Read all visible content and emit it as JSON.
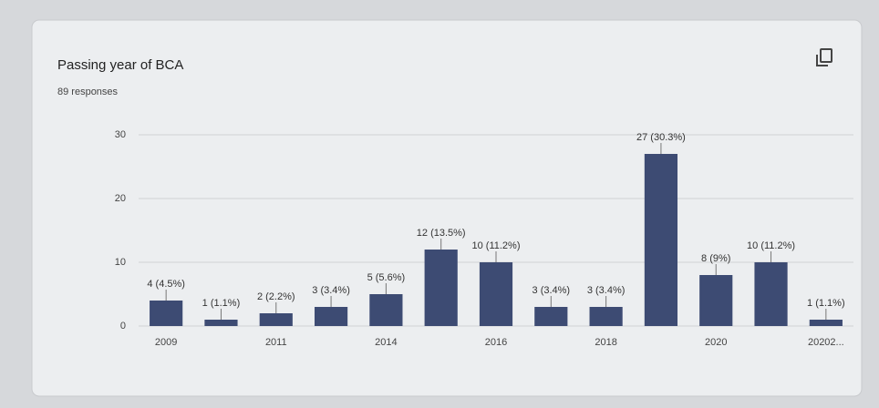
{
  "chart_data": {
    "type": "bar",
    "title": "Passing year of BCA",
    "subtitle": "89 responses",
    "categories": [
      "2009",
      null,
      "2011",
      null,
      "2014",
      null,
      "2016",
      null,
      "2018",
      null,
      "2020",
      null,
      "20202..."
    ],
    "values": [
      4,
      1,
      2,
      3,
      5,
      12,
      10,
      3,
      3,
      27,
      8,
      10,
      1
    ],
    "value_labels": [
      "4 (4.5%)",
      "1 (1.1%)",
      "2 (2.2%)",
      "3 (3.4%)",
      "5 (5.6%)",
      "12 (13.5%)",
      "10 (11.2%)",
      "3 (3.4%)",
      "3 (3.4%)",
      "27 (30.3%)",
      "8 (9%)",
      "10 (11.2%)",
      "1 (1.1%)"
    ],
    "color": "#3d4b73",
    "ylim": [
      0,
      30
    ],
    "yticks": [
      0,
      10,
      20,
      30
    ],
    "grid": true
  }
}
